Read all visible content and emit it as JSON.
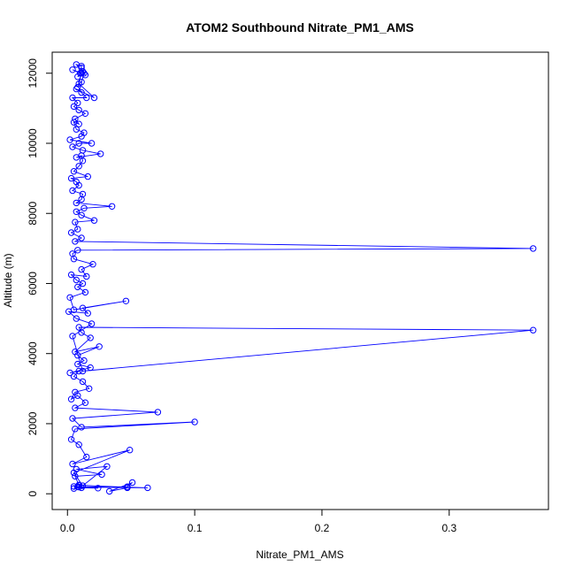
{
  "chart_data": {
    "type": "line",
    "title": "ATOM2 Southbound Nitrate_PM1_AMS",
    "xlabel": "Nitrate_PM1_AMS",
    "ylabel": "Altitude (m)",
    "xlim": [
      -0.012,
      0.378
    ],
    "ylim": [
      -450,
      12600
    ],
    "xticks": [
      0.0,
      0.1,
      0.2,
      0.3
    ],
    "xtick_labels": [
      "0.0",
      "0.1",
      "0.2",
      "0.3"
    ],
    "yticks": [
      0,
      2000,
      4000,
      6000,
      8000,
      10000,
      12000
    ],
    "ytick_labels": [
      "0",
      "2000",
      "4000",
      "6000",
      "8000",
      "10000",
      "12000"
    ],
    "grid": false,
    "legend": "none",
    "color": "#0000ff",
    "series": [
      {
        "markers": "open-circle",
        "x": [
          0.005,
          0.008,
          0.024,
          0.011,
          0.005,
          0.009,
          0.063,
          0.009,
          0.047,
          0.051,
          0.033,
          0.047,
          0.009,
          0.006,
          0.027,
          0.007,
          0.031,
          0.012,
          0.005,
          0.049,
          0.004,
          0.015,
          0.009,
          0.003,
          0.006,
          0.1,
          0.011,
          0.004,
          0.071,
          0.006,
          0.014,
          0.008,
          0.003,
          0.006,
          0.017,
          0.012,
          0.005,
          0.009,
          0.002,
          0.018,
          0.008,
          0.013,
          0.008,
          0.025,
          0.006,
          0.018,
          0.011,
          0.009,
          0.366,
          0.012,
          0.004,
          0.019,
          0.007,
          0.001,
          0.016,
          0.012,
          0.046,
          0.005,
          0.002,
          0.014,
          0.008,
          0.012,
          0.007,
          0.003,
          0.015,
          0.011,
          0.02,
          0.005,
          0.004,
          0.008,
          0.366,
          0.006,
          0.011,
          0.003,
          0.008,
          0.006,
          0.021,
          0.011,
          0.007,
          0.013,
          0.035,
          0.007,
          0.011,
          0.012,
          0.004,
          0.009,
          0.007,
          0.003,
          0.016,
          0.005,
          0.009,
          0.012,
          0.011,
          0.007,
          0.026,
          0.012,
          0.004,
          0.009,
          0.019,
          0.002,
          0.011,
          0.013,
          0.007,
          0.005,
          0.009,
          0.006,
          0.014,
          0.009,
          0.005,
          0.008,
          0.004,
          0.015,
          0.011,
          0.007,
          0.021,
          0.009,
          0.011,
          0.013,
          0.008,
          0.012,
          0.011,
          0.014,
          0.007,
          0.011,
          0.01,
          0.004,
          0.011,
          0.008
        ],
        "y": [
          150,
          200,
          160,
          170,
          210,
          240,
          170,
          190,
          200,
          320,
          70,
          170,
          250,
          500,
          550,
          700,
          780,
          230,
          600,
          1250,
          850,
          1050,
          1400,
          1550,
          1850,
          2050,
          1900,
          2150,
          2330,
          2450,
          2600,
          2800,
          2700,
          2900,
          3000,
          3200,
          3350,
          3500,
          3450,
          3600,
          3700,
          3800,
          3950,
          4200,
          4050,
          4450,
          4600,
          4750,
          4670,
          3500,
          4500,
          4850,
          5000,
          5200,
          5150,
          5300,
          5500,
          5250,
          5600,
          5750,
          5900,
          6000,
          6100,
          6250,
          6200,
          6400,
          6550,
          6700,
          6850,
          6950,
          7000,
          7200,
          7300,
          7450,
          7550,
          7750,
          7800,
          7950,
          8050,
          8150,
          8200,
          8300,
          8400,
          8550,
          8650,
          8800,
          8900,
          9000,
          9050,
          9200,
          9350,
          9500,
          9650,
          9600,
          9700,
          9800,
          9900,
          10000,
          10000,
          10100,
          10200,
          10300,
          10400,
          10600,
          10550,
          10700,
          10850,
          10950,
          11050,
          11150,
          11300,
          11300,
          11450,
          11550,
          11300,
          11700,
          11750,
          12000,
          11900,
          12050,
          12150,
          11950,
          12250,
          12200,
          12000,
          12100,
          12000,
          11600
        ]
      }
    ]
  }
}
